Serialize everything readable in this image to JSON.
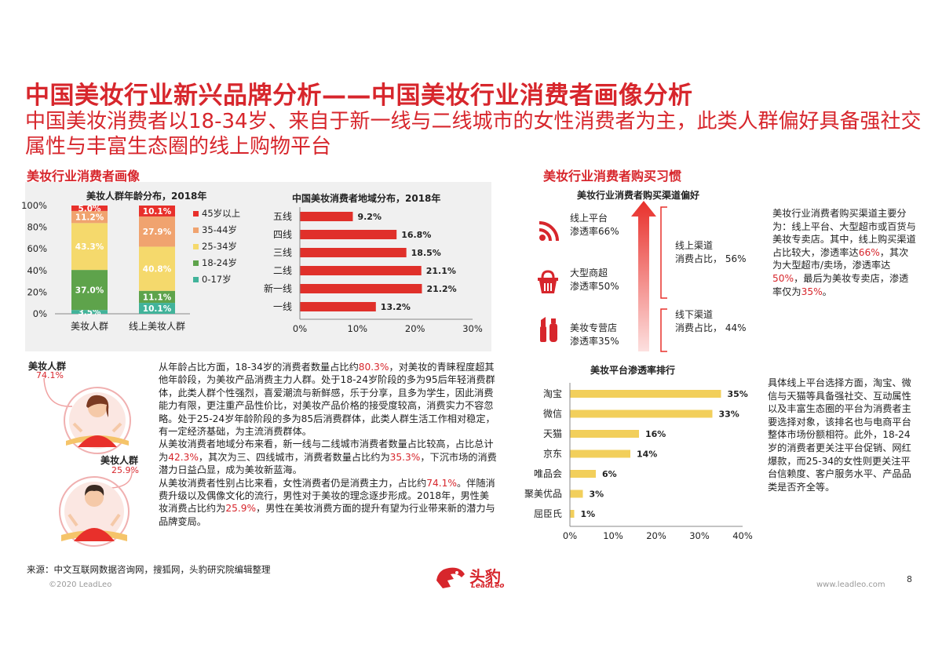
{
  "header": {
    "title": "中国美妆行业新兴品牌分析——中国美妆行业消费者画像分析",
    "subtitle": "中国美妆消费者以18-34岁、来自于新一线与二线城市的女性消费者为主，此类人群偏好具备强社交属性与丰富生态圈的线上购物平台"
  },
  "left_section": {
    "title": "美妆行业消费者画像"
  },
  "right_section": {
    "title": "美妆行业消费者购买习惯"
  },
  "gender": {
    "female_label": "美妆人群",
    "female_pct": "74.1%",
    "male_label": "美妆人群",
    "male_pct": "25.9%"
  },
  "paragraphs": [
    [
      {
        "t": "从年龄占比方面，18-34岁的消费者数量占比约",
        "h": false
      },
      {
        "t": "80.3%",
        "h": true
      },
      {
        "t": "，对美妆的青睐程度超其他年龄段，为美妆产品消费主力人群。处于18-24岁阶段的多为95后年轻消费群体，此类人群个性强烈，喜爱潮流与新鲜感，乐于分享，且多为学生，因此消费能力有限，更注重产品性价比，对美妆产品价格的接受度较高，消费实力不容忽略。处于25-24岁年龄阶段的多为85后消费群体，此类人群生活工作相对稳定，有一定经济基础，为主流消费群体。",
        "h": false
      }
    ],
    [
      {
        "t": "从美妆消费者地域分布来看，新一线与二线城市消费者数量占比较高，占比总计为",
        "h": false
      },
      {
        "t": "42.3%",
        "h": true
      },
      {
        "t": "，其次为三、四线城市，消费者数量占比约为",
        "h": false
      },
      {
        "t": "35.3%",
        "h": true
      },
      {
        "t": "，下沉市场的消费潜力日益凸显，成为美妆新蓝海。",
        "h": false
      }
    ],
    [
      {
        "t": "从美妆消费者性别占比来看，女性消费者仍是消费主力，占比约",
        "h": false
      },
      {
        "t": "74.1%",
        "h": true
      },
      {
        "t": "。伴随消费升级以及偶像文化的流行，男性对于美妆的理念逐步形成。2018年，男性美妆消费占比约为",
        "h": false
      },
      {
        "t": "25.9%",
        "h": true
      },
      {
        "t": "，男性在美妆消费方面的提升有望为行业带来新的潜力与品牌变局。",
        "h": false
      }
    ]
  ],
  "channels": {
    "title": "美妆行业消费者购买渠道偏好",
    "items": [
      {
        "icon": "wifi-icon",
        "line1": "线上平台",
        "line2": "渗透率66%"
      },
      {
        "icon": "shopping-basket-icon",
        "line1": "大型商超",
        "line2": "渗透率50%"
      },
      {
        "icon": "cosmetics-icon",
        "line1": "美妆专营店",
        "line2": "渗透率35%"
      }
    ],
    "online": {
      "line1": "线上渠道",
      "line2": "消费占比，  56%"
    },
    "offline": {
      "line1": "线下渠道",
      "line2": "消费占比，  44%"
    }
  },
  "channel_note": [
    {
      "t": "美妆行业消费者购买渠道主要分为：线上平台、大型超市或百货与美妆专卖店。其中，线上购买渠道占比较大，渗透率达",
      "h": false
    },
    {
      "t": "66%",
      "h": true
    },
    {
      "t": "，其次为大型超市/卖场，渗透率达",
      "h": false
    },
    {
      "t": "50%",
      "h": true
    },
    {
      "t": "，最后为美妆专卖店，渗透率仅为",
      "h": false
    },
    {
      "t": "35%",
      "h": true
    },
    {
      "t": "。",
      "h": false
    }
  ],
  "platform_note": "具体线上平台选择方面，淘宝、微信与天猫等具备强社交、互动属性以及丰富生态圈的平台为消费者主要选择对象，该排名也与电商平台整体市场份额相符。此外，18-24岁的消费者更关注平台促销、网红爆款，而25-34的女性则更关注平台信赖度、客户服务水平、产品品类是否齐全等。",
  "footer": {
    "source": "来源：中文互联网数据咨询网，搜狐网，头豹研究院编辑整理",
    "copyright": "©2020 LeadLeo",
    "website": "www.leadleo.com",
    "page": "8",
    "logo_text": "头豹",
    "logo_sub": "LeadLeo"
  },
  "colors": {
    "accent": "#d7262c",
    "bar_red": "#e0302a",
    "bar_yellow": "#f2cf5b",
    "age_45plus": "#e8302b",
    "age_35_44": "#f0a36f",
    "age_25_34": "#f5d96c",
    "age_18_24": "#5ea34b",
    "age_0_17": "#41b39a"
  },
  "chart_data": [
    {
      "type": "bar",
      "stacked": true,
      "title": "美妆人群年龄分布，2018年",
      "categories": [
        "美妆人群",
        "线上美妆人群"
      ],
      "series": [
        {
          "name": "0-17岁",
          "values": [
            3.5,
            10.1
          ]
        },
        {
          "name": "18-24岁",
          "values": [
            37.0,
            11.1
          ]
        },
        {
          "name": "25-34岁",
          "values": [
            43.3,
            40.8
          ]
        },
        {
          "name": "35-44岁",
          "values": [
            11.2,
            27.9
          ]
        },
        {
          "name": "45岁以上",
          "values": [
            5.0,
            10.1
          ]
        }
      ],
      "labels": [
        [
          "3.5%",
          "37.0%",
          "43.3%",
          "11.2%",
          "5.0%"
        ],
        [
          "10.1%",
          "11.1%",
          "40.8%",
          "27.9%",
          "10.1%"
        ]
      ],
      "yticks": [
        "0%",
        "20%",
        "40%",
        "60%",
        "80%",
        "100%"
      ],
      "ylim": [
        0,
        100
      ],
      "legend": "right"
    },
    {
      "type": "bar",
      "orientation": "horizontal",
      "title": "中国美妆消费者地域分布，2018年",
      "categories": [
        "五线",
        "四线",
        "三线",
        "二线",
        "新一线",
        "一线"
      ],
      "values": [
        9.2,
        16.8,
        18.5,
        21.1,
        21.2,
        13.2
      ],
      "labels": [
        "9.2%",
        "16.8%",
        "18.5%",
        "21.1%",
        "21.2%",
        "13.2%"
      ],
      "xticks": [
        "0%",
        "10%",
        "20%",
        "30%"
      ],
      "xlim": [
        0,
        30
      ]
    },
    {
      "type": "bar",
      "orientation": "horizontal",
      "title": "美妆平台渗透率排行",
      "categories": [
        "淘宝",
        "微信",
        "天猫",
        "京东",
        "唯品会",
        "聚美优品",
        "屈臣氏"
      ],
      "values": [
        35,
        33,
        16,
        14,
        6,
        3,
        1
      ],
      "labels": [
        "35%",
        "33%",
        "16%",
        "14%",
        "6%",
        "3%",
        "1%"
      ],
      "xticks": [
        "0%",
        "10%",
        "20%",
        "30%",
        "40%"
      ],
      "xlim": [
        0,
        40
      ]
    }
  ]
}
